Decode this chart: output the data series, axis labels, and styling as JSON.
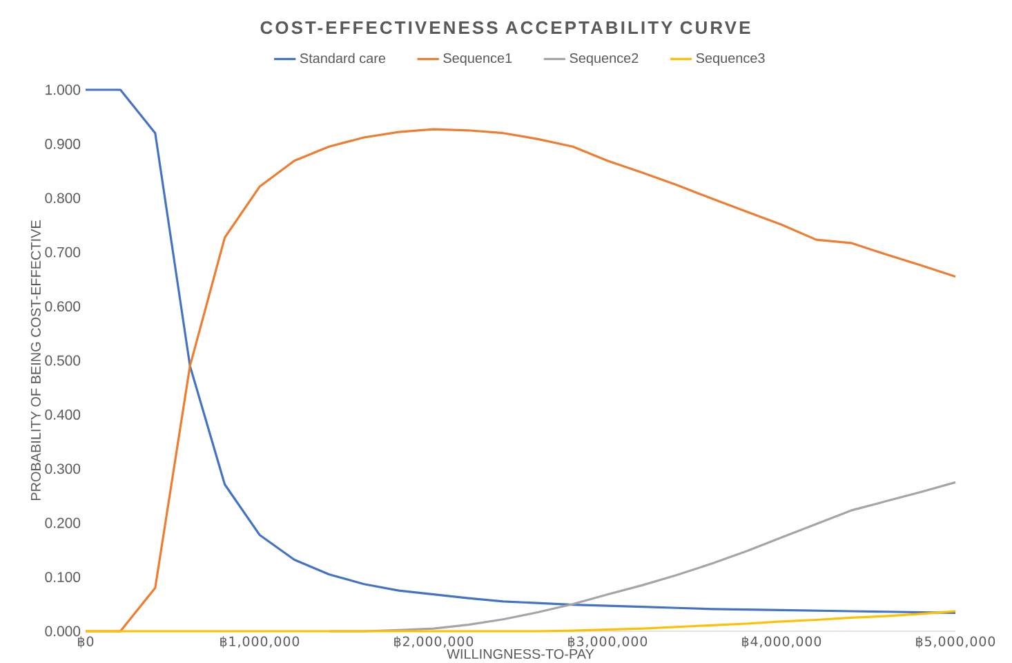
{
  "chart_data": {
    "type": "line",
    "title": "COST-EFFECTIVENESS ACCEPTABILITY CURVE",
    "xlabel": "WILLINGNESS-TO-PAY",
    "ylabel": "PROBABILITY OF BEING COST-EFFECTIVE",
    "x": [
      0,
      200000,
      400000,
      600000,
      800000,
      1000000,
      1200000,
      1400000,
      1600000,
      1800000,
      2000000,
      2200000,
      2400000,
      2600000,
      2800000,
      3000000,
      3200000,
      3400000,
      3600000,
      3800000,
      4000000,
      4200000,
      4400000,
      4600000,
      4800000,
      5000000
    ],
    "series": [
      {
        "name": "Standard care",
        "color": "#4472c4",
        "values": [
          1.0,
          1.0,
          0.92,
          0.49,
          0.271,
          0.178,
          0.132,
          0.105,
          0.087,
          0.075,
          0.068,
          0.061,
          0.055,
          0.052,
          0.049,
          0.047,
          0.045,
          0.043,
          0.041,
          0.04,
          0.039,
          0.038,
          0.037,
          0.036,
          0.035,
          0.034
        ]
      },
      {
        "name": "Sequence1",
        "color": "#ed7d31",
        "values": [
          0.0,
          0.0,
          0.08,
          0.49,
          0.727,
          0.821,
          0.869,
          0.895,
          0.912,
          0.922,
          0.927,
          0.925,
          0.92,
          0.909,
          0.895,
          0.869,
          0.847,
          0.824,
          0.799,
          0.775,
          0.751,
          0.723,
          0.717,
          0.696,
          0.676,
          0.655
        ]
      },
      {
        "name": "Sequence2",
        "color": "#a5a5a5",
        "values": [
          null,
          null,
          null,
          null,
          null,
          null,
          null,
          0,
          0,
          0.002,
          0.005,
          0.012,
          0.022,
          0.035,
          0.05,
          0.068,
          0.085,
          0.104,
          0.125,
          0.148,
          0.173,
          0.198,
          0.223,
          0.24,
          0.257,
          0.275
        ]
      },
      {
        "name": "Sequence3",
        "color": "#ffc000",
        "values": [
          0,
          0,
          0,
          0,
          0,
          0,
          0,
          0,
          0,
          0,
          0,
          0,
          0,
          0,
          0.001,
          0.003,
          0.005,
          0.008,
          0.011,
          0.014,
          0.018,
          0.021,
          0.025,
          0.028,
          0.032,
          0.037
        ]
      }
    ],
    "xlim": [
      0,
      5000000
    ],
    "xticks": [
      {
        "value": 0,
        "label": "฿0"
      },
      {
        "value": 1000000,
        "label": "฿1,000,000"
      },
      {
        "value": 2000000,
        "label": "฿2,000,000"
      },
      {
        "value": 3000000,
        "label": "฿3,000,000"
      },
      {
        "value": 4000000,
        "label": "฿4,000,000"
      },
      {
        "value": 5000000,
        "label": "฿5,000,000"
      }
    ],
    "ylim": [
      0,
      1
    ],
    "yticks": [
      {
        "value": 0,
        "label": "0.000"
      },
      {
        "value": 0.1,
        "label": "0.100"
      },
      {
        "value": 0.2,
        "label": "0.200"
      },
      {
        "value": 0.3,
        "label": "0.300"
      },
      {
        "value": 0.4,
        "label": "0.400"
      },
      {
        "value": 0.5,
        "label": "0.500"
      },
      {
        "value": 0.6,
        "label": "0.600"
      },
      {
        "value": 0.7,
        "label": "0.700"
      },
      {
        "value": 0.8,
        "label": "0.800"
      },
      {
        "value": 0.9,
        "label": "0.900"
      },
      {
        "value": 1,
        "label": "1.000"
      }
    ],
    "grid": false,
    "legend": "top",
    "marker": "none",
    "line_style": "solid"
  }
}
